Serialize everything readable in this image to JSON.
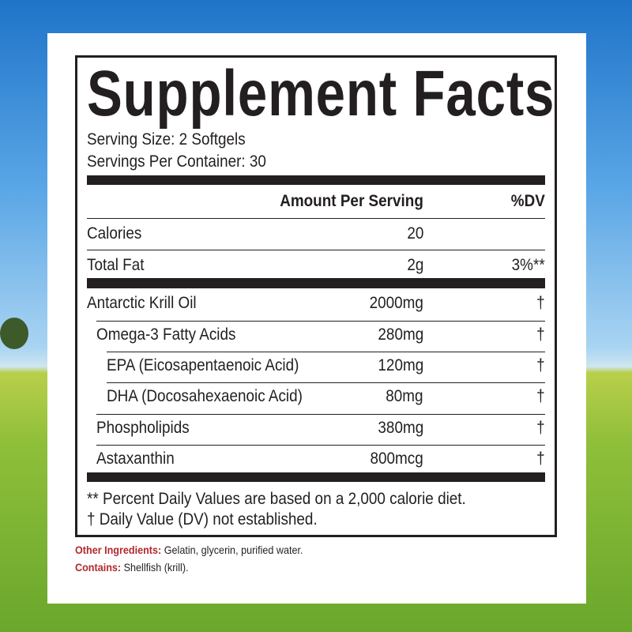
{
  "title": "Supplement Facts",
  "serving_size": "Serving Size: 2 Softgels",
  "servings_per_container": "Servings Per Container: 30",
  "table": {
    "header": {
      "amount": "Amount Per Serving",
      "dv": "%DV"
    },
    "rows": [
      {
        "name": "Calories",
        "amount": "20"
      },
      {
        "name": "Total Fat",
        "amount": "2g",
        "dv": "3%**"
      },
      {
        "name": "Antarctic Krill Oil",
        "amount": "2000mg",
        "dv": "†"
      },
      {
        "name": "Omega-3 Fatty Acids",
        "amount": "280mg",
        "dv": "†"
      },
      {
        "name": "EPA (Eicosapentaenoic Acid)",
        "amount": "120mg",
        "dv": "†"
      },
      {
        "name": "DHA (Docosahexaenoic Acid)",
        "amount": "80mg",
        "dv": "†"
      },
      {
        "name": "Phospholipids",
        "amount": "380mg",
        "dv": "†"
      },
      {
        "name": "Astaxanthin",
        "amount": "800mcg",
        "dv": "†"
      }
    ]
  },
  "footnotes": [
    "** Percent Daily Values are based on a 2,000 calorie diet.",
    "† Daily Value (DV) not established."
  ],
  "other_ingredients": {
    "label": "Other Ingredients:",
    "text": "Gelatin, glycerin, purified water."
  },
  "contains": {
    "label": "Contains:",
    "text": "Shellfish (krill)."
  }
}
